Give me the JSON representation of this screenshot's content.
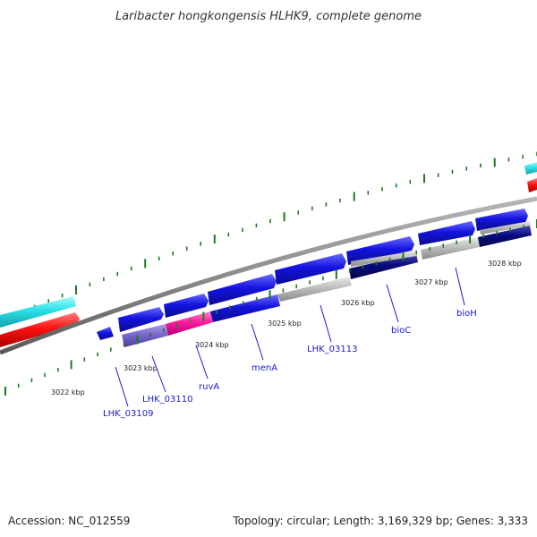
{
  "title": "Laribacter hongkongensis HLHK9, complete genome",
  "accession": "Accession: NC_012559",
  "topology": "Topology: circular; Length: 3,169,329 bp; Genes: 3,333",
  "colors": {
    "backbone": "#8c8c8c",
    "tick": "#1f7a1f",
    "cds_blue": "#1414e0",
    "cds_navy": "#0a0a80",
    "cds_gray": "#bdbdbd",
    "cds_purple": "#7b68cc",
    "cds_pink": "#ff1aa0",
    "feature_cyan": "#29e0e6",
    "feature_red": "#ff1212",
    "gene_label": "#1a1acc"
  },
  "kbp_ticks": [
    "3022 kbp",
    "3023 kbp",
    "3024 kbp",
    "3025 kbp",
    "3026 kbp",
    "3027 kbp",
    "3028 kbp"
  ],
  "genes": [
    {
      "name": "LHK_03109"
    },
    {
      "name": "LHK_03110"
    },
    {
      "name": "ruvA"
    },
    {
      "name": "menA"
    },
    {
      "name": "LHK_03113"
    },
    {
      "name": "bioC"
    },
    {
      "name": "bioH"
    }
  ]
}
